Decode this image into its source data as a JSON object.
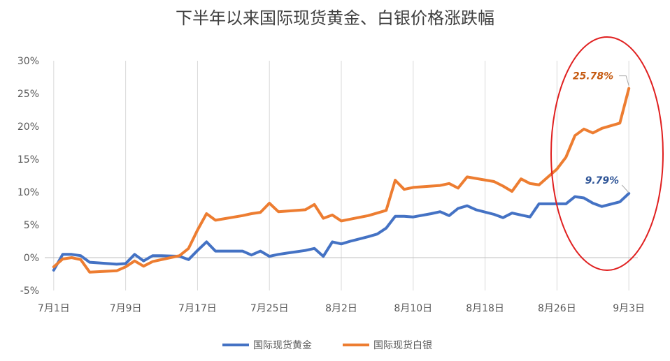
{
  "chart_data": {
    "type": "line",
    "title": "下半年以来国际现货黄金、白银价格涨跌幅",
    "xlabel": "",
    "ylabel": "",
    "ylim": [
      -5,
      30
    ],
    "xlim": [
      "2019-06-30",
      "2019-09-04"
    ],
    "y_ticks": [
      -5,
      0,
      5,
      10,
      15,
      20,
      25,
      30
    ],
    "y_tick_labels": [
      "-5%",
      "0%",
      "5%",
      "10%",
      "15%",
      "20%",
      "25%",
      "30%"
    ],
    "x_ticks": [
      "2019-07-01",
      "2019-07-09",
      "2019-07-17",
      "2019-07-25",
      "2019-08-02",
      "2019-08-10",
      "2019-08-18",
      "2019-08-26",
      "2019-09-03"
    ],
    "x_tick_labels": [
      "7月1日",
      "7月9日",
      "7月17日",
      "7月25日",
      "8月2日",
      "8月10日",
      "8月18日",
      "8月26日",
      "9月3日"
    ],
    "grid": "vertical",
    "legend_position": "bottom",
    "series": [
      {
        "name": "国际现货黄金",
        "color": "#4472C4",
        "end_label": "9.79%",
        "x": [
          "2019-07-01",
          "2019-07-02",
          "2019-07-03",
          "2019-07-04",
          "2019-07-05",
          "2019-07-06",
          "2019-07-08",
          "2019-07-09",
          "2019-07-10",
          "2019-07-11",
          "2019-07-12",
          "2019-07-13",
          "2019-07-15",
          "2019-07-16",
          "2019-07-17",
          "2019-07-18",
          "2019-07-19",
          "2019-07-20",
          "2019-07-22",
          "2019-07-23",
          "2019-07-24",
          "2019-07-25",
          "2019-07-26",
          "2019-07-27",
          "2019-07-29",
          "2019-07-30",
          "2019-07-31",
          "2019-08-01",
          "2019-08-02",
          "2019-08-03",
          "2019-08-05",
          "2019-08-06",
          "2019-08-07",
          "2019-08-08",
          "2019-08-09",
          "2019-08-10",
          "2019-08-12",
          "2019-08-13",
          "2019-08-14",
          "2019-08-15",
          "2019-08-16",
          "2019-08-17",
          "2019-08-19",
          "2019-08-20",
          "2019-08-21",
          "2019-08-22",
          "2019-08-23",
          "2019-08-24",
          "2019-08-26",
          "2019-08-27",
          "2019-08-28",
          "2019-08-29",
          "2019-08-30",
          "2019-08-31",
          "2019-09-02",
          "2019-09-03"
        ],
        "values": [
          -1.9,
          0.5,
          0.5,
          0.3,
          -0.7,
          -0.8,
          -1.0,
          -0.9,
          0.5,
          -0.5,
          0.3,
          0.3,
          0.2,
          -0.3,
          1.1,
          2.4,
          1.0,
          1.0,
          1.0,
          0.4,
          1.0,
          0.2,
          0.5,
          0.7,
          1.1,
          1.4,
          0.2,
          2.4,
          2.1,
          2.5,
          3.2,
          3.6,
          4.5,
          6.3,
          6.3,
          6.2,
          6.7,
          7.0,
          6.4,
          7.5,
          7.9,
          7.3,
          6.6,
          6.1,
          6.8,
          6.5,
          6.2,
          8.2,
          8.2,
          8.2,
          9.3,
          9.1,
          8.3,
          7.8,
          8.5,
          9.79
        ]
      },
      {
        "name": "国际现货白银",
        "color": "#ED7D31",
        "end_label": "25.78%",
        "x": [
          "2019-07-01",
          "2019-07-02",
          "2019-07-03",
          "2019-07-04",
          "2019-07-05",
          "2019-07-08",
          "2019-07-09",
          "2019-07-10",
          "2019-07-11",
          "2019-07-12",
          "2019-07-15",
          "2019-07-16",
          "2019-07-17",
          "2019-07-18",
          "2019-07-19",
          "2019-07-22",
          "2019-07-23",
          "2019-07-24",
          "2019-07-25",
          "2019-07-26",
          "2019-07-29",
          "2019-07-30",
          "2019-07-31",
          "2019-08-01",
          "2019-08-02",
          "2019-08-05",
          "2019-08-06",
          "2019-08-07",
          "2019-08-08",
          "2019-08-09",
          "2019-08-10",
          "2019-08-13",
          "2019-08-14",
          "2019-08-15",
          "2019-08-16",
          "2019-08-19",
          "2019-08-20",
          "2019-08-21",
          "2019-08-22",
          "2019-08-23",
          "2019-08-24",
          "2019-08-26",
          "2019-08-27",
          "2019-08-28",
          "2019-08-29",
          "2019-08-30",
          "2019-08-31",
          "2019-09-02",
          "2019-09-03"
        ],
        "values": [
          -1.4,
          -0.2,
          0.0,
          -0.3,
          -2.2,
          -2.0,
          -1.4,
          -0.5,
          -1.3,
          -0.6,
          0.3,
          1.4,
          4.2,
          6.7,
          5.7,
          6.4,
          6.7,
          6.9,
          8.3,
          7.0,
          7.3,
          8.1,
          6.0,
          6.5,
          5.6,
          6.4,
          6.8,
          7.2,
          11.8,
          10.4,
          10.7,
          11.0,
          11.3,
          10.6,
          12.3,
          11.6,
          10.9,
          10.1,
          12.0,
          11.3,
          11.1,
          13.5,
          15.3,
          18.6,
          19.6,
          19.0,
          19.7,
          20.5,
          25.78
        ]
      }
    ]
  }
}
